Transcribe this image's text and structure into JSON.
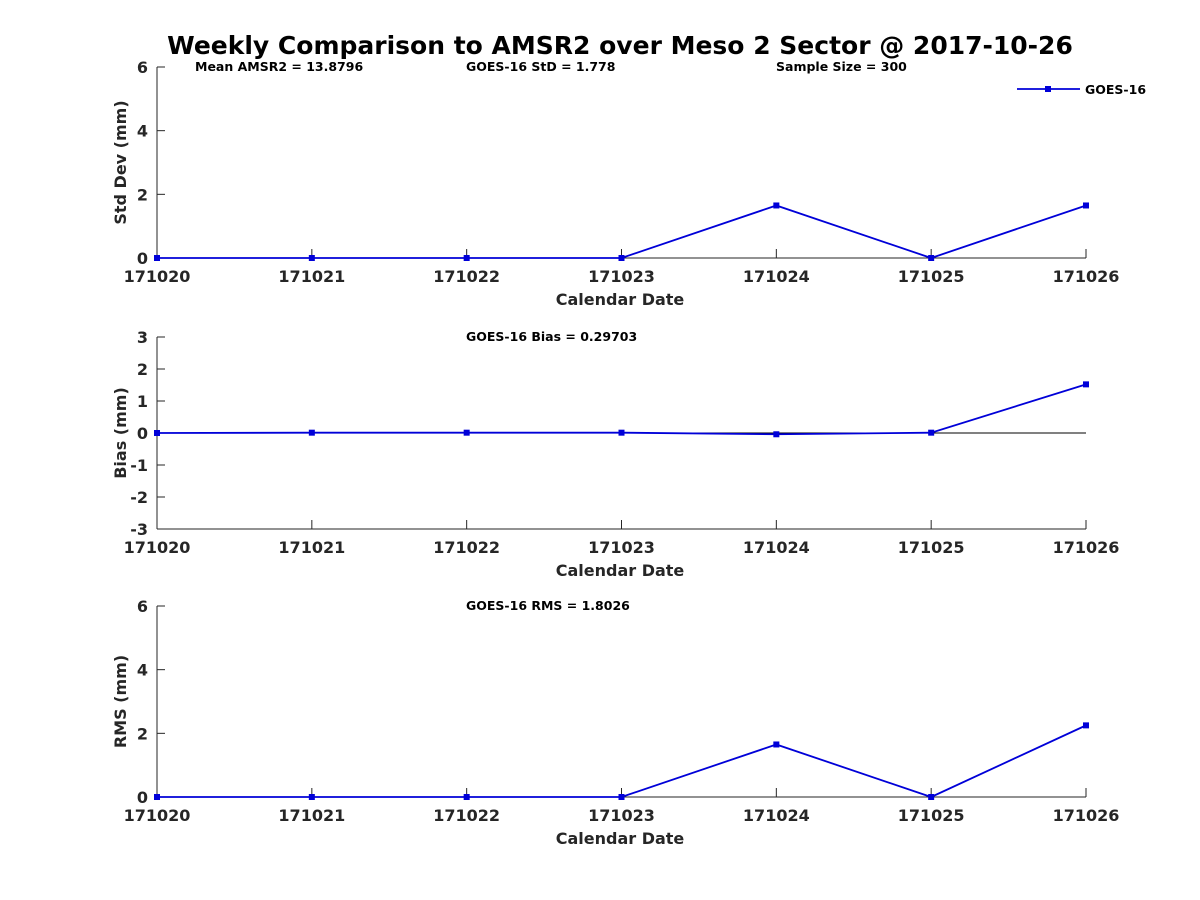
{
  "title": "Weekly Comparison to AMSR2 over Meso 2 Sector @ 2017-10-26",
  "colors": {
    "series": "#0000d8",
    "axis": "#262626",
    "zero_line": "#000000"
  },
  "legend": {
    "label": "GOES-16",
    "placement": "top-right"
  },
  "chart_data": [
    {
      "type": "line",
      "title": "",
      "xlabel": "Calendar Date",
      "ylabel": "Std Dev (mm)",
      "ylim": [
        0,
        6
      ],
      "yticks": [
        "0",
        "2",
        "4",
        "6"
      ],
      "categories": [
        "171020",
        "171021",
        "171022",
        "171023",
        "171024",
        "171025",
        "171026"
      ],
      "series": [
        {
          "name": "GOES-16",
          "values": [
            0,
            0,
            0,
            0,
            1.65,
            0,
            1.65
          ]
        }
      ],
      "annotations": [
        "Mean AMSR2 = 13.8796",
        "GOES-16 StD = 1.778",
        "Sample Size = 300"
      ],
      "zero_line": false
    },
    {
      "type": "line",
      "title": "",
      "xlabel": "Calendar Date",
      "ylabel": "Bias (mm)",
      "ylim": [
        -3,
        3
      ],
      "yticks": [
        "-3",
        "-2",
        "-1",
        "0",
        "1",
        "2",
        "3"
      ],
      "categories": [
        "171020",
        "171021",
        "171022",
        "171023",
        "171024",
        "171025",
        "171026"
      ],
      "series": [
        {
          "name": "GOES-16",
          "values": [
            0,
            0.01,
            0.01,
            0.01,
            -0.04,
            0.01,
            1.52
          ]
        }
      ],
      "annotations": [
        "GOES-16 Bias  = 0.29703"
      ],
      "zero_line": true
    },
    {
      "type": "line",
      "title": "",
      "xlabel": "Calendar Date",
      "ylabel": "RMS (mm)",
      "ylim": [
        0,
        6
      ],
      "yticks": [
        "0",
        "2",
        "4",
        "6"
      ],
      "categories": [
        "171020",
        "171021",
        "171022",
        "171023",
        "171024",
        "171025",
        "171026"
      ],
      "series": [
        {
          "name": "GOES-16",
          "values": [
            0,
            0,
            0,
            0,
            1.65,
            0,
            2.25
          ]
        }
      ],
      "annotations": [
        "GOES-16 RMS = 1.8026"
      ],
      "zero_line": false
    }
  ]
}
